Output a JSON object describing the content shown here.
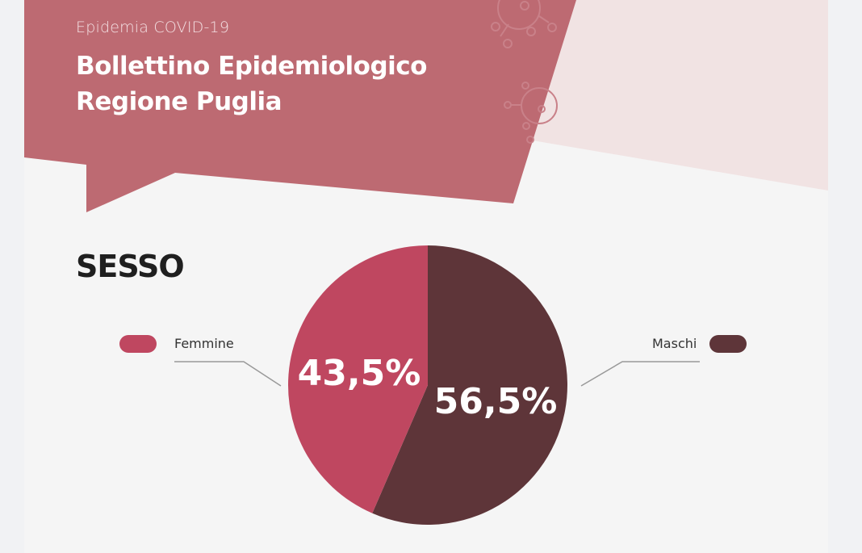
{
  "header": {
    "subtitle": "Epidemia COVID-19",
    "title_line1": "Bollettino Epidemiologico",
    "title_line2": "Regione Puglia"
  },
  "section_title": "SESSO",
  "colors": {
    "banner": "#bd6a72",
    "accent_light": "#f1e3e3",
    "femmine": "#bf4760",
    "maschi": "#5e3539"
  },
  "chart_data": {
    "type": "pie",
    "categories": [
      "Maschi",
      "Femmine"
    ],
    "values": [
      56.5,
      43.5
    ],
    "labels": [
      "56,5%",
      "43,5%"
    ],
    "colors": [
      "#5e3539",
      "#bf4760"
    ],
    "legend": [
      "Femmine",
      "Maschi"
    ]
  }
}
